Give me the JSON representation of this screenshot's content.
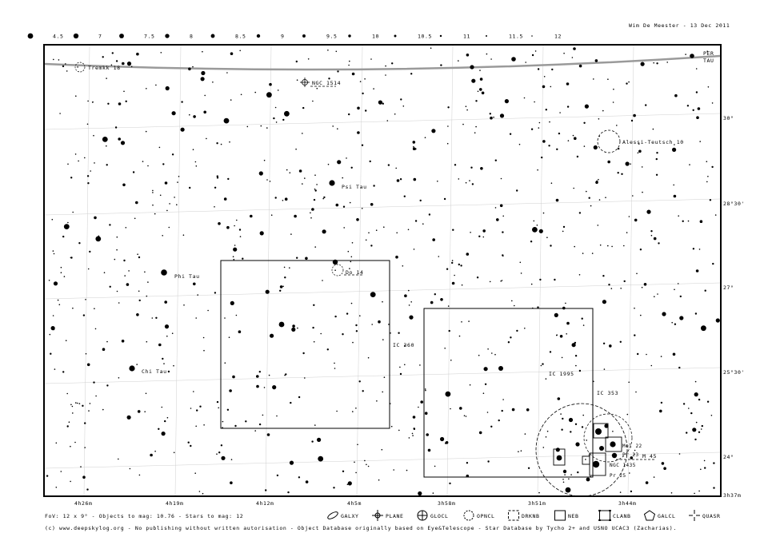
{
  "header": {
    "credit": "Wim De Meester - 13 Dec 2011"
  },
  "magnitude_scale": [
    "4.5",
    "7",
    "7.5",
    "8",
    "8.5",
    "9",
    "9.5",
    "10",
    "10.5",
    "11",
    "11.5",
    "12"
  ],
  "dec_labels": [
    "30°",
    "28°30'",
    "27°",
    "25°30'",
    "24°"
  ],
  "ra_labels": [
    "4h26m",
    "4h19m",
    "4h12m",
    "4h5m",
    "3h58m",
    "3h51m",
    "3h44m",
    "3h37m"
  ],
  "constellation_boundary": {
    "upper": "PER",
    "lower": "TAU"
  },
  "objects": [
    {
      "id": "trapezium-label",
      "text": "Tremkk 18"
    },
    {
      "id": "ngc1514",
      "text": "NGC 1514"
    },
    {
      "id": "alessi",
      "text": "Alessi-Teutsch 10"
    },
    {
      "id": "psi-tau",
      "text": "Psi Tau"
    },
    {
      "id": "do14",
      "text": "Do 14"
    },
    {
      "id": "phi-tau",
      "text": "Phi Tau"
    },
    {
      "id": "ic360",
      "text": "IC 360"
    },
    {
      "id": "chi-tau",
      "text": "Chi Tau"
    },
    {
      "id": "ic1995",
      "text": "IC 1995"
    },
    {
      "id": "ic353",
      "text": "IC 353"
    },
    {
      "id": "m45",
      "text": "M 45"
    },
    {
      "id": "ngc1435",
      "text": "NGC 1435"
    },
    {
      "id": "pleiades-c1",
      "text": "Mel 22"
    },
    {
      "id": "pleiades-c2",
      "text": "Pr 23"
    },
    {
      "id": "pleiades-c3",
      "text": "Pr 25"
    }
  ],
  "legend": {
    "fov": "FoV: 12 x 9° - Objects to mag: 10.76 - Stars to mag: 12",
    "items": [
      "GALXY",
      "PLANE",
      "GLOCL",
      "OPNCL",
      "DRKNB",
      "NEB",
      "CLANB",
      "GALCL",
      "QUASR"
    ]
  },
  "footer": "(c) www.deepskylog.org - No publishing without written autorisation - Object Database originally based on Eye&Telescope - Star Database by Tycho 2+ and USNO UCAC3 (Zacharias)."
}
